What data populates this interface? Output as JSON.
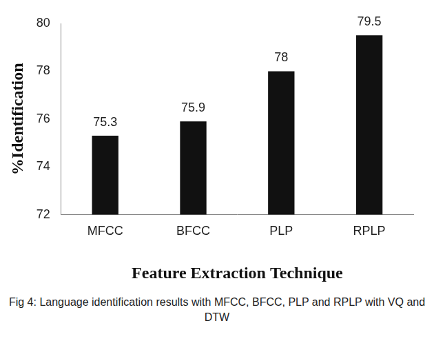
{
  "chart_data": {
    "type": "bar",
    "categories": [
      "MFCC",
      "BFCC",
      "PLP",
      "RPLP"
    ],
    "values": [
      75.3,
      75.9,
      78,
      79.5
    ],
    "color": "#111111",
    "y_label": "%Identification",
    "x_label": "Feature Extraction Technique",
    "caption": "Fig 4: Language identification results with MFCC, BFCC, PLP and RPLP with VQ and DTW",
    "ylim": [
      72,
      80
    ],
    "yticks": [
      72,
      74,
      76,
      78,
      80
    ],
    "grid": false,
    "data_labels": true
  }
}
